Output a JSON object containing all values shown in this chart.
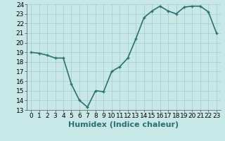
{
  "x": [
    0,
    1,
    2,
    3,
    4,
    5,
    6,
    7,
    8,
    9,
    10,
    11,
    12,
    13,
    14,
    15,
    16,
    17,
    18,
    19,
    20,
    21,
    22,
    23
  ],
  "y": [
    19.0,
    18.9,
    18.7,
    18.4,
    18.4,
    15.7,
    14.0,
    13.3,
    15.0,
    14.9,
    17.0,
    17.5,
    18.4,
    20.4,
    22.6,
    23.3,
    23.8,
    23.3,
    23.0,
    23.7,
    23.8,
    23.8,
    23.2,
    21.0
  ],
  "xlabel": "Humidex (Indice chaleur)",
  "line_color": "#2d7070",
  "marker": "+",
  "bg_color": "#c8e8e8",
  "grid_color": "#a0cccc",
  "ylim": [
    13,
    24
  ],
  "xlim": [
    -0.5,
    23.5
  ],
  "yticks": [
    13,
    14,
    15,
    16,
    17,
    18,
    19,
    20,
    21,
    22,
    23,
    24
  ],
  "xticks": [
    0,
    1,
    2,
    3,
    4,
    5,
    6,
    7,
    8,
    9,
    10,
    11,
    12,
    13,
    14,
    15,
    16,
    17,
    18,
    19,
    20,
    21,
    22,
    23
  ],
  "tick_fontsize": 6.5,
  "xlabel_fontsize": 8.0,
  "linewidth": 1.2,
  "markersize": 3.5
}
